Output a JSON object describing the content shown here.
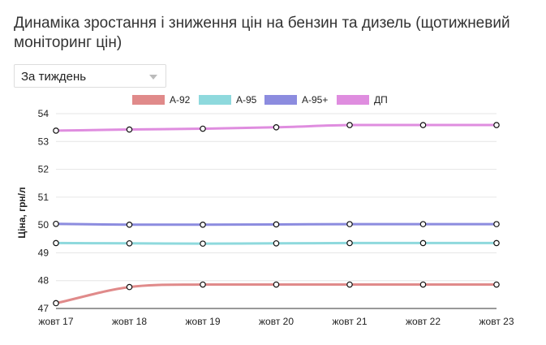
{
  "title": "Динаміка зростання і зниження цін на бензин та дизель (щотижневий моніторинг цін)",
  "period_select": {
    "value": "За тиждень",
    "icon": "chevron-down-icon"
  },
  "chart_data": {
    "type": "line",
    "x": [
      "жовт 17",
      "жовт 18",
      "жовт 19",
      "жовт 20",
      "жовт 21",
      "жовт 22",
      "жовт 23"
    ],
    "ylabel": "Ціна, грн/л",
    "ylim": [
      47,
      54
    ],
    "yticks": [
      "47",
      "48",
      "49",
      "50",
      "51",
      "52",
      "53",
      "54"
    ],
    "grid": true,
    "legend_position": "top",
    "series": [
      {
        "name": "А-92",
        "color": "#e08a8a",
        "values": [
          47.19,
          47.77,
          47.86,
          47.86,
          47.86,
          47.86,
          47.86
        ]
      },
      {
        "name": "А-95",
        "color": "#8ed9dd",
        "values": [
          49.35,
          49.34,
          49.33,
          49.34,
          49.35,
          49.35,
          49.35
        ]
      },
      {
        "name": "А-95+",
        "color": "#8c8cdf",
        "values": [
          50.04,
          50.01,
          50.01,
          50.02,
          50.03,
          50.03,
          50.03
        ]
      },
      {
        "name": "ДП",
        "color": "#df8ddf",
        "values": [
          53.39,
          53.43,
          53.46,
          53.51,
          53.59,
          53.59,
          53.59
        ]
      }
    ]
  }
}
